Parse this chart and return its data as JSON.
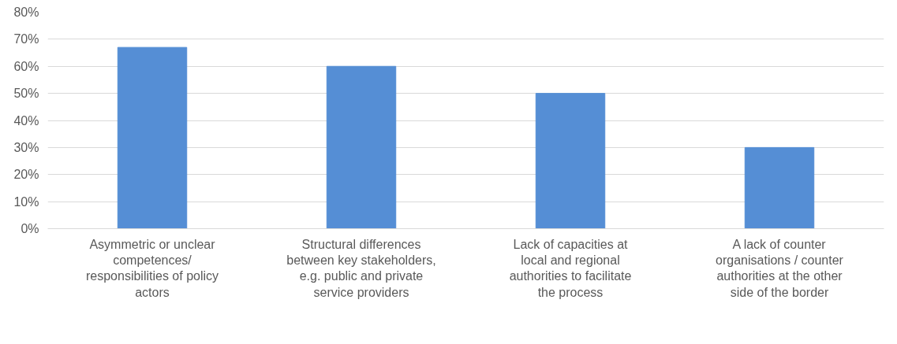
{
  "chart_data": {
    "type": "bar",
    "categories": [
      "Asymmetric or unclear competences/ responsibilities of policy actors",
      "Structural differences between key stakeholders, e.g. public and private service providers",
      "Lack of capacities at local and regional authorities to facilitate the process",
      "A lack of counter organisations / counter authorities at the other side of the border"
    ],
    "values": [
      67,
      60,
      50,
      30
    ],
    "color": "#558ed5",
    "ylim": [
      0,
      80
    ],
    "yticks": [
      {
        "value": 0,
        "label": "0%"
      },
      {
        "value": 10,
        "label": "10%"
      },
      {
        "value": 20,
        "label": "20%"
      },
      {
        "value": 30,
        "label": "30%"
      },
      {
        "value": 40,
        "label": "40%"
      },
      {
        "value": 50,
        "label": "50%"
      },
      {
        "value": 60,
        "label": "60%"
      },
      {
        "value": 70,
        "label": "70%"
      },
      {
        "value": 80,
        "label": "80%"
      }
    ],
    "grid": "y"
  }
}
